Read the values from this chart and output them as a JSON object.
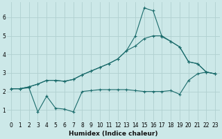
{
  "xlabel": "Humidex (Indice chaleur)",
  "bg_color": "#cce8e8",
  "grid_color": "#b0d0d0",
  "line_color": "#1a6b6b",
  "xlim": [
    -0.5,
    23.5
  ],
  "ylim": [
    0.4,
    6.8
  ],
  "yticks": [
    1,
    2,
    3,
    4,
    5,
    6
  ],
  "xticks": [
    0,
    1,
    2,
    3,
    4,
    5,
    6,
    7,
    8,
    9,
    10,
    11,
    12,
    13,
    14,
    15,
    16,
    17,
    18,
    19,
    20,
    21,
    22,
    23
  ],
  "line1_x": [
    0,
    1,
    2,
    3,
    4,
    5,
    6,
    7,
    8,
    9,
    10,
    11,
    12,
    13,
    14,
    15,
    16,
    17,
    18,
    19,
    20,
    21,
    22,
    23
  ],
  "line1_y": [
    2.15,
    2.15,
    2.25,
    2.4,
    2.6,
    2.6,
    2.55,
    2.65,
    2.9,
    3.1,
    3.3,
    3.5,
    3.75,
    4.2,
    4.45,
    4.85,
    5.0,
    5.0,
    4.7,
    4.4,
    3.6,
    3.5,
    3.05,
    2.95
  ],
  "line2_x": [
    0,
    1,
    2,
    3,
    4,
    5,
    6,
    7,
    8,
    9,
    10,
    11,
    12,
    13,
    14,
    15,
    16,
    17,
    18,
    19,
    20,
    21,
    22,
    23
  ],
  "line2_y": [
    2.15,
    2.15,
    2.25,
    2.4,
    2.6,
    2.6,
    2.55,
    2.65,
    2.9,
    3.1,
    3.3,
    3.5,
    3.75,
    4.2,
    5.0,
    6.5,
    6.35,
    4.95,
    4.7,
    4.4,
    3.6,
    3.5,
    3.05,
    2.95
  ],
  "line3_x": [
    0,
    1,
    2,
    3,
    4,
    5,
    6,
    7,
    8,
    9,
    10,
    11,
    12,
    13,
    14,
    15,
    16,
    17,
    18,
    19,
    20,
    21,
    22,
    23
  ],
  "line3_y": [
    2.15,
    2.15,
    2.2,
    0.9,
    1.75,
    1.1,
    1.05,
    0.9,
    2.0,
    2.05,
    2.1,
    2.1,
    2.1,
    2.1,
    2.05,
    2.0,
    2.0,
    2.0,
    2.05,
    1.85,
    2.6,
    2.95,
    3.05,
    2.95
  ]
}
